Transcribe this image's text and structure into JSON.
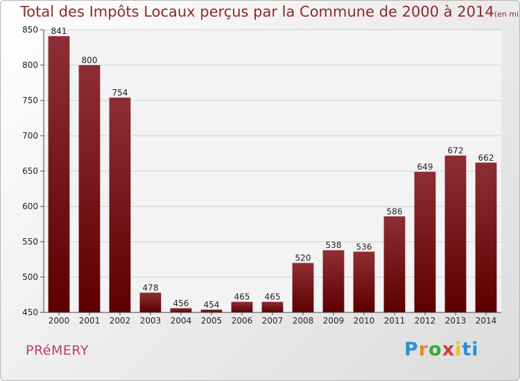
{
  "header": {
    "title": "Total des Impôts Locaux perçus par la Commune de 2000 à 2014",
    "unit": "(en milliers d'€)"
  },
  "footer": {
    "commune": "PRéMERY",
    "logo": {
      "p1": "P",
      "p2": "r",
      "p3": "o",
      "p4": "x",
      "p5": "i",
      "p6": "ti"
    }
  },
  "colors": {
    "bar_dark": "#5c0000",
    "bar_light": "#8e2e34",
    "title": "#8e2a2a",
    "commune": "#c23a6a"
  },
  "chart_data": {
    "type": "bar",
    "title": "Total des Impôts Locaux perçus par la Commune de 2000 à 2014",
    "xlabel": "",
    "ylabel": "",
    "ylim": [
      450,
      850
    ],
    "yticks": [
      450,
      500,
      550,
      600,
      650,
      700,
      750,
      800,
      850
    ],
    "grid": true,
    "categories": [
      "2000",
      "2001",
      "2002",
      "2003",
      "2004",
      "2005",
      "2006",
      "2007",
      "2008",
      "2009",
      "2010",
      "2011",
      "2012",
      "2013",
      "2014"
    ],
    "values": [
      841,
      800,
      754,
      478,
      456,
      454,
      465,
      465,
      520,
      538,
      536,
      586,
      649,
      672,
      662
    ]
  }
}
